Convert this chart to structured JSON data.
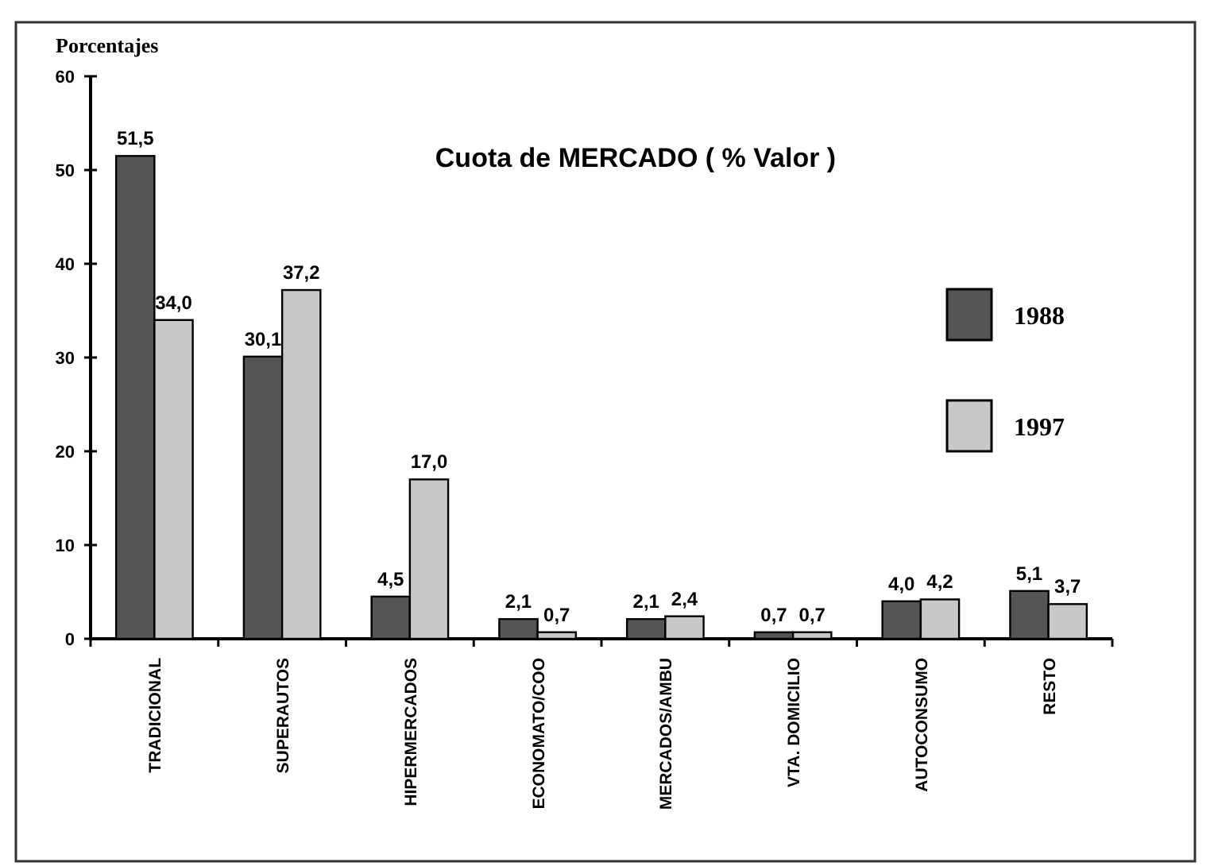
{
  "chart_data": {
    "type": "bar",
    "title": "Cuota de MERCADO ( % Valor )",
    "ylabel": "Porcentajes",
    "categories": [
      "TRADICIONAL",
      "SUPERAUTOS",
      "HIPERMERCADOS",
      "ECONOMATO/COO",
      "MERCADOS/AMBU",
      "VTA. DOMICILIO",
      "AUTOCONSUMO",
      "RESTO"
    ],
    "series": [
      {
        "name": "1988",
        "color": "#555555",
        "values": [
          51.5,
          30.1,
          4.5,
          2.1,
          2.1,
          0.7,
          4.0,
          5.1
        ],
        "value_labels": [
          "51,5",
          "30,1",
          "4,5",
          "2,1",
          "2,1",
          "0,7",
          "4,0",
          "5,1"
        ]
      },
      {
        "name": "1997",
        "color": "#c8c8c8",
        "values": [
          34.0,
          37.2,
          17.0,
          0.7,
          2.4,
          0.7,
          4.2,
          3.7
        ],
        "value_labels": [
          "34,0",
          "37,2",
          "17,0",
          "0,7",
          "2,4",
          "0,7",
          "4,2",
          "3,7"
        ]
      }
    ],
    "ylim": [
      0,
      60
    ],
    "yticks": [
      0,
      10,
      20,
      30,
      40,
      50,
      60
    ],
    "grid": false,
    "legend": "right"
  }
}
